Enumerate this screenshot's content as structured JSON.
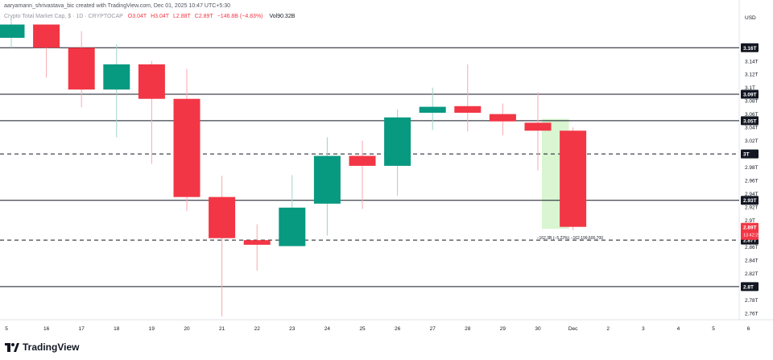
{
  "header": {
    "credit": "aaryamann_shrivastava_bic created with TradingView.com, Dec 01, 2025 10:47 UTC+5:30",
    "symbol": "Crypto Total Market Cap, $ · 1D · CRYPTOCAP",
    "open": "O3.04T",
    "high": "H3.04T",
    "low": "L2.88T",
    "close": "C2.89T",
    "change": "−146.8B (−4.83%)",
    "volume": "Vol90.32B"
  },
  "brand": {
    "name": "TradingView"
  },
  "colors": {
    "up": "#089981",
    "down": "#f23645",
    "grid_line": "#131722",
    "highlight": "#ccf2c2"
  },
  "chart_data": {
    "type": "candlestick",
    "currency_label": "USD",
    "x_labels": [
      "5",
      "16",
      "17",
      "18",
      "19",
      "20",
      "21",
      "22",
      "23",
      "24",
      "25",
      "26",
      "27",
      "28",
      "29",
      "30",
      "Dec",
      "2",
      "3",
      "4",
      "5",
      "6"
    ],
    "candles": [
      {
        "x": "15",
        "open": 3.175,
        "high": 3.205,
        "low": 3.16,
        "close": 3.195
      },
      {
        "x": "16",
        "open": 3.195,
        "high": 3.195,
        "low": 3.115,
        "close": 3.16
      },
      {
        "x": "17",
        "open": 3.16,
        "high": 3.185,
        "low": 3.07,
        "close": 3.097
      },
      {
        "x": "18",
        "open": 3.097,
        "high": 3.165,
        "low": 3.025,
        "close": 3.135
      },
      {
        "x": "19",
        "open": 3.135,
        "high": 3.14,
        "low": 2.985,
        "close": 3.083
      },
      {
        "x": "20",
        "open": 3.083,
        "high": 3.128,
        "low": 2.914,
        "close": 2.935
      },
      {
        "x": "21",
        "open": 2.935,
        "high": 2.967,
        "low": 2.755,
        "close": 2.873
      },
      {
        "x": "22",
        "open": 2.87,
        "high": 2.894,
        "low": 2.824,
        "close": 2.863
      },
      {
        "x": "23",
        "open": 2.861,
        "high": 2.968,
        "low": 2.861,
        "close": 2.919
      },
      {
        "x": "24",
        "open": 2.925,
        "high": 3.025,
        "low": 2.877,
        "close": 2.997
      },
      {
        "x": "25",
        "open": 2.997,
        "high": 3.02,
        "low": 2.917,
        "close": 2.982
      },
      {
        "x": "26",
        "open": 2.982,
        "high": 3.067,
        "low": 2.937,
        "close": 3.055
      },
      {
        "x": "27",
        "open": 3.062,
        "high": 3.1,
        "low": 3.036,
        "close": 3.071
      },
      {
        "x": "28",
        "open": 3.072,
        "high": 3.135,
        "low": 3.034,
        "close": 3.062
      },
      {
        "x": "29",
        "open": 3.06,
        "high": 3.076,
        "low": 3.028,
        "close": 3.049
      },
      {
        "x": "30",
        "open": 3.047,
        "high": 3.093,
        "low": 2.975,
        "close": 3.035
      },
      {
        "x": "Dec",
        "open": 3.035,
        "high": 3.04,
        "low": 2.885,
        "close": 2.89
      }
    ],
    "y_ticks": [
      "3.14T",
      "3.12T",
      "3.1T",
      "3.08T",
      "3.06T",
      "3.04T",
      "3.02T",
      "2.98T",
      "2.96T",
      "2.94T",
      "2.92T",
      "2.9T",
      "2.86T",
      "2.84T",
      "2.82T",
      "2.78T",
      "2.76T"
    ],
    "horizontal_levels": [
      {
        "value": 3.16,
        "label": "3.16T",
        "style": "solid"
      },
      {
        "value": 3.09,
        "label": "3.09T",
        "style": "solid"
      },
      {
        "value": 3.05,
        "label": "3.05T",
        "style": "solid"
      },
      {
        "value": 3.0,
        "label": "3T",
        "style": "dashed"
      },
      {
        "value": 2.93,
        "label": "2.93T",
        "style": "solid"
      },
      {
        "value": 2.87,
        "label": "2.87T",
        "style": "dashed"
      },
      {
        "value": 2.8,
        "label": "2.8T",
        "style": "solid"
      }
    ],
    "last_price": {
      "value": 2.89,
      "label": "2.89T",
      "countdown": "13:42:25"
    },
    "range_box": {
      "from_x": "30",
      "to_x": "Dec",
      "top": 3.053,
      "bottom": 2.887,
      "label": "−162.3B (−5.22%) −162,199,600,700"
    },
    "ylim": [
      2.75,
      3.215
    ],
    "grid": false
  }
}
